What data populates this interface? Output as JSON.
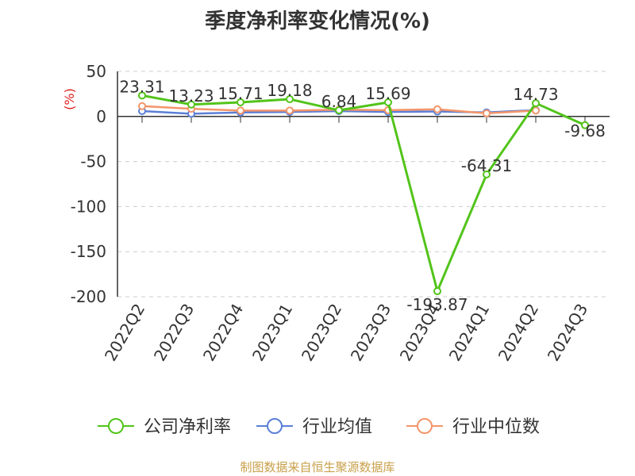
{
  "chart_data": {
    "type": "line",
    "title": "季度净利率变化情况(%)",
    "ylabel": "(%)",
    "xlabel": "",
    "ylim": [
      -200,
      50
    ],
    "yticks": [
      50,
      0,
      -50,
      -100,
      -150,
      -200
    ],
    "grid": true,
    "legend_position": "bottom",
    "categories": [
      "2022Q2",
      "2022Q3",
      "2022Q4",
      "2023Q1",
      "2023Q2",
      "2023Q3",
      "2023Q4",
      "2024Q1",
      "2024Q2",
      "2024Q3"
    ],
    "series": [
      {
        "name": "公司净利率",
        "color": "#52c41a",
        "values": [
          23.31,
          13.23,
          15.71,
          19.18,
          6.84,
          15.69,
          -193.87,
          -64.31,
          14.73,
          -9.68
        ],
        "labels": [
          "23.31",
          "13.23",
          "15.71",
          "19.18",
          "6.84",
          "15.69",
          "-193.87",
          "-64.31",
          "14.73",
          "-9.68"
        ]
      },
      {
        "name": "行业均值",
        "color": "#5b7fd6",
        "values": [
          6.0,
          3.0,
          4.5,
          5.0,
          6.0,
          5.0,
          5.5,
          4.5,
          7.0,
          null
        ]
      },
      {
        "name": "行业中位数",
        "color": "#f4956a",
        "values": [
          11.5,
          8.5,
          6.5,
          6.5,
          7.5,
          7.0,
          8.0,
          3.5,
          6.5,
          null
        ]
      }
    ]
  },
  "source": "制图数据来自恒生聚源数据库"
}
